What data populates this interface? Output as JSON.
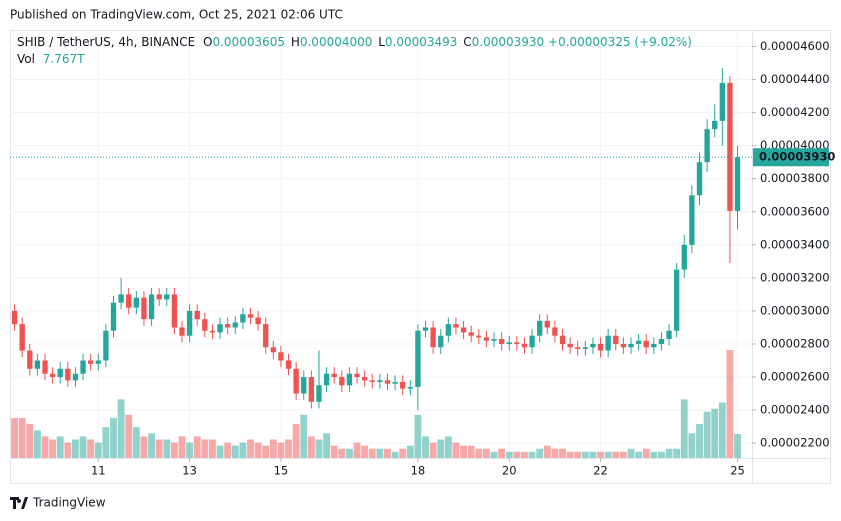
{
  "header": {
    "published": "Published on TradingView.com, Oct 25, 2021 02:06 UTC",
    "logo": "TradingView"
  },
  "chart_data": {
    "type": "candlestick",
    "symbol": "SHIB / TetherUS, 4h, BINANCE",
    "legend": {
      "o_label": "O",
      "open": "0.00003605",
      "h_label": "H",
      "high": "0.00004000",
      "l_label": "L",
      "low": "0.00003493",
      "c_label": "C",
      "close": "0.00003930",
      "change": "+0.00000325 (+9.02%)",
      "vol_label": "Vol",
      "vol": "7.767T"
    },
    "last_price_label": "0.00003930",
    "up_color": "#26a69a",
    "down_color": "#ef5350",
    "grid": true,
    "open": [
      3e-05,
      2.92e-05,
      2.76e-05,
      2.65e-05,
      2.7e-05,
      2.62e-05,
      2.6e-05,
      2.65e-05,
      2.58e-05,
      2.62e-05,
      2.7e-05,
      2.68e-05,
      2.7e-05,
      2.88e-05,
      3.05e-05,
      3.1e-05,
      3.02e-05,
      3.08e-05,
      2.95e-05,
      3.1e-05,
      3.07e-05,
      3.1e-05,
      2.9e-05,
      2.85e-05,
      3e-05,
      2.95e-05,
      2.88e-05,
      2.87e-05,
      2.92e-05,
      2.9e-05,
      2.93e-05,
      2.98e-05,
      2.96e-05,
      2.92e-05,
      2.78e-05,
      2.75e-05,
      2.7e-05,
      2.65e-05,
      2.5e-05,
      2.6e-05,
      2.45e-05,
      2.55e-05,
      2.62e-05,
      2.6e-05,
      2.55e-05,
      2.62e-05,
      2.6e-05,
      2.58e-05,
      2.57e-05,
      2.58e-05,
      2.56e-05,
      2.57e-05,
      2.53e-05,
      2.54e-05,
      2.88e-05,
      2.9e-05,
      2.78e-05,
      2.85e-05,
      2.92e-05,
      2.9e-05,
      2.87e-05,
      2.85e-05,
      2.84e-05,
      2.82e-05,
      2.83e-05,
      2.8e-05,
      2.81e-05,
      2.8e-05,
      2.78e-05,
      2.85e-05,
      2.94e-05,
      2.9e-05,
      2.85e-05,
      2.8e-05,
      2.78e-05,
      2.77e-05,
      2.78e-05,
      2.8e-05,
      2.76e-05,
      2.85e-05,
      2.8e-05,
      2.78e-05,
      2.8e-05,
      2.82e-05,
      2.78e-05,
      2.8e-05,
      2.83e-05,
      2.88e-05,
      3.25e-05,
      3.4e-05,
      3.7e-05,
      3.9e-05,
      4.1e-05,
      4.15e-05,
      4.38e-05,
      3.605e-05
    ],
    "high": [
      3.04e-05,
      2.96e-05,
      2.8e-05,
      2.74e-05,
      2.74e-05,
      2.66e-05,
      2.69e-05,
      2.69e-05,
      2.66e-05,
      2.74e-05,
      2.74e-05,
      2.74e-05,
      2.92e-05,
      3.09e-05,
      3.2e-05,
      3.14e-05,
      3.12e-05,
      3.12e-05,
      3.14e-05,
      3.14e-05,
      3.14e-05,
      3.14e-05,
      2.94e-05,
      3.04e-05,
      3.04e-05,
      2.99e-05,
      2.92e-05,
      2.96e-05,
      2.96e-05,
      2.97e-05,
      3.02e-05,
      3.02e-05,
      3e-05,
      2.96e-05,
      2.82e-05,
      2.79e-05,
      2.74e-05,
      2.69e-05,
      2.64e-05,
      2.64e-05,
      2.76e-05,
      2.66e-05,
      2.66e-05,
      2.64e-05,
      2.66e-05,
      2.66e-05,
      2.64e-05,
      2.62e-05,
      2.62e-05,
      2.62e-05,
      2.61e-05,
      2.61e-05,
      2.58e-05,
      2.92e-05,
      2.94e-05,
      2.94e-05,
      2.89e-05,
      2.96e-05,
      2.96e-05,
      2.94e-05,
      2.91e-05,
      2.89e-05,
      2.88e-05,
      2.87e-05,
      2.87e-05,
      2.85e-05,
      2.85e-05,
      2.84e-05,
      2.89e-05,
      2.98e-05,
      2.98e-05,
      2.94e-05,
      2.89e-05,
      2.84e-05,
      2.82e-05,
      2.82e-05,
      2.84e-05,
      2.84e-05,
      2.89e-05,
      2.89e-05,
      2.84e-05,
      2.84e-05,
      2.86e-05,
      2.86e-05,
      2.84e-05,
      2.87e-05,
      2.92e-05,
      3.29e-05,
      3.46e-05,
      3.76e-05,
      3.96e-05,
      4.16e-05,
      4.25e-05,
      4.47e-05,
      4.42e-05,
      4e-05
    ],
    "low": [
      2.88e-05,
      2.72e-05,
      2.61e-05,
      2.61e-05,
      2.58e-05,
      2.56e-05,
      2.56e-05,
      2.54e-05,
      2.54e-05,
      2.58e-05,
      2.64e-05,
      2.64e-05,
      2.66e-05,
      2.84e-05,
      3.01e-05,
      2.98e-05,
      2.98e-05,
      2.91e-05,
      2.91e-05,
      3.03e-05,
      3.03e-05,
      2.86e-05,
      2.81e-05,
      2.81e-05,
      2.91e-05,
      2.84e-05,
      2.83e-05,
      2.83e-05,
      2.86e-05,
      2.86e-05,
      2.89e-05,
      2.92e-05,
      2.88e-05,
      2.74e-05,
      2.71e-05,
      2.66e-05,
      2.61e-05,
      2.46e-05,
      2.46e-05,
      2.41e-05,
      2.41e-05,
      2.51e-05,
      2.56e-05,
      2.51e-05,
      2.51e-05,
      2.56e-05,
      2.54e-05,
      2.53e-05,
      2.53e-05,
      2.52e-05,
      2.52e-05,
      2.49e-05,
      2.49e-05,
      2.4e-05,
      2.84e-05,
      2.74e-05,
      2.74e-05,
      2.81e-05,
      2.86e-05,
      2.83e-05,
      2.81e-05,
      2.8e-05,
      2.78e-05,
      2.78e-05,
      2.76e-05,
      2.76e-05,
      2.76e-05,
      2.74e-05,
      2.74e-05,
      2.81e-05,
      2.86e-05,
      2.81e-05,
      2.76e-05,
      2.74e-05,
      2.73e-05,
      2.73e-05,
      2.74e-05,
      2.72e-05,
      2.72e-05,
      2.76e-05,
      2.74e-05,
      2.74e-05,
      2.76e-05,
      2.74e-05,
      2.74e-05,
      2.76e-05,
      2.79e-05,
      2.84e-05,
      3.2e-05,
      3.35e-05,
      3.64e-05,
      3.84e-05,
      4.05e-05,
      4e-05,
      3.29e-05,
      3.493e-05
    ],
    "close": [
      2.92e-05,
      2.76e-05,
      2.65e-05,
      2.7e-05,
      2.62e-05,
      2.6e-05,
      2.65e-05,
      2.58e-05,
      2.62e-05,
      2.7e-05,
      2.68e-05,
      2.7e-05,
      2.88e-05,
      3.05e-05,
      3.1e-05,
      3.02e-05,
      3.08e-05,
      2.95e-05,
      3.1e-05,
      3.07e-05,
      3.1e-05,
      2.9e-05,
      2.85e-05,
      3e-05,
      2.95e-05,
      2.88e-05,
      2.87e-05,
      2.92e-05,
      2.9e-05,
      2.93e-05,
      2.98e-05,
      2.96e-05,
      2.92e-05,
      2.78e-05,
      2.75e-05,
      2.7e-05,
      2.65e-05,
      2.5e-05,
      2.6e-05,
      2.45e-05,
      2.55e-05,
      2.62e-05,
      2.6e-05,
      2.55e-05,
      2.62e-05,
      2.6e-05,
      2.58e-05,
      2.57e-05,
      2.58e-05,
      2.56e-05,
      2.57e-05,
      2.53e-05,
      2.54e-05,
      2.88e-05,
      2.9e-05,
      2.78e-05,
      2.85e-05,
      2.92e-05,
      2.9e-05,
      2.87e-05,
      2.85e-05,
      2.84e-05,
      2.82e-05,
      2.83e-05,
      2.8e-05,
      2.81e-05,
      2.8e-05,
      2.78e-05,
      2.85e-05,
      2.94e-05,
      2.9e-05,
      2.85e-05,
      2.8e-05,
      2.78e-05,
      2.77e-05,
      2.78e-05,
      2.8e-05,
      2.76e-05,
      2.85e-05,
      2.8e-05,
      2.78e-05,
      2.8e-05,
      2.82e-05,
      2.78e-05,
      2.8e-05,
      2.83e-05,
      2.88e-05,
      3.25e-05,
      3.4e-05,
      3.7e-05,
      3.9e-05,
      4.1e-05,
      4.15e-05,
      4.38e-05,
      3.605e-05,
      3.93e-05
    ],
    "volume": [
      13,
      13,
      11,
      9,
      7,
      6,
      7,
      5,
      6,
      7,
      6,
      5,
      10,
      13,
      19,
      14,
      10,
      7,
      8,
      6,
      6,
      5,
      7,
      5,
      7,
      6,
      6,
      4,
      5,
      4,
      5,
      6,
      5,
      4,
      6,
      5,
      6,
      11,
      14,
      7,
      6,
      8,
      4,
      3,
      3,
      5,
      4,
      3,
      3,
      3,
      2,
      3,
      4,
      14,
      7,
      5,
      6,
      7,
      5,
      4,
      4,
      3,
      3,
      2,
      3,
      2,
      2,
      2,
      2,
      3,
      4,
      3,
      3,
      2,
      2,
      2,
      2,
      2,
      2,
      2,
      2,
      3,
      2,
      3,
      2,
      2,
      3,
      3,
      19,
      8,
      11,
      15,
      16,
      18,
      35,
      7.767
    ],
    "ylim": [
      2.11e-05,
      4.7e-05
    ],
    "yticks": [
      {
        "value": 2.2e-05,
        "label": "0.00002200"
      },
      {
        "value": 2.4e-05,
        "label": "0.00002400"
      },
      {
        "value": 2.6e-05,
        "label": "0.00002600"
      },
      {
        "value": 2.8e-05,
        "label": "0.00002800"
      },
      {
        "value": 3e-05,
        "label": "0.00003000"
      },
      {
        "value": 3.2e-05,
        "label": "0.00003200"
      },
      {
        "value": 3.4e-05,
        "label": "0.00003400"
      },
      {
        "value": 3.6e-05,
        "label": "0.00003600"
      },
      {
        "value": 3.8e-05,
        "label": "0.00003800"
      },
      {
        "value": 4e-05,
        "label": "0.00004000"
      },
      {
        "value": 4.2e-05,
        "label": "0.00004200"
      },
      {
        "value": 4.4e-05,
        "label": "0.00004400"
      },
      {
        "value": 4.6e-05,
        "label": "0.00004600"
      }
    ],
    "xlim": [
      -0.6,
      96.9
    ],
    "xticks": [
      {
        "value": 11,
        "label": "11"
      },
      {
        "value": 23,
        "label": "13"
      },
      {
        "value": 35,
        "label": "15"
      },
      {
        "value": 53,
        "label": "18"
      },
      {
        "value": 65,
        "label": "20"
      },
      {
        "value": 77,
        "label": "22"
      },
      {
        "value": 95,
        "label": "25"
      }
    ]
  }
}
